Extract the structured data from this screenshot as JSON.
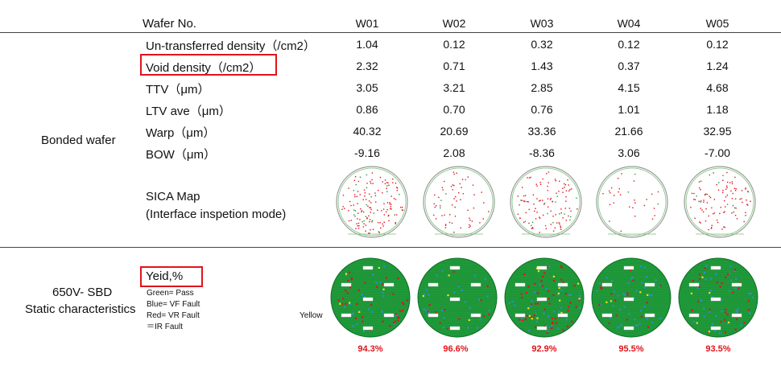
{
  "header": {
    "row_label": "Wafer No.",
    "wafers": [
      "W01",
      "W02",
      "W03",
      "W04",
      "W05"
    ]
  },
  "bonded": {
    "group_label": "Bonded wafer",
    "rows": [
      {
        "label": "Un-transferred density（/cm2）",
        "values": [
          "1.04",
          "0.12",
          "0.32",
          "0.12",
          "0.12"
        ]
      },
      {
        "label": "Void density（/cm2）",
        "values": [
          "2.32",
          "0.71",
          "1.43",
          "0.37",
          "1.24"
        ]
      },
      {
        "label": "TTV（μm）",
        "values": [
          "3.05",
          "3.21",
          "2.85",
          "4.15",
          "4.68"
        ]
      },
      {
        "label": "LTV ave（μm）",
        "values": [
          "0.86",
          "0.70",
          "0.76",
          "1.01",
          "1.18"
        ]
      },
      {
        "label": "Warp（μm）",
        "values": [
          "40.32",
          "20.69",
          "33.36",
          "21.66",
          "32.95"
        ]
      },
      {
        "label": "BOW（μm）",
        "values": [
          "-9.16",
          "2.08",
          "-8.36",
          "3.06",
          "-7.00"
        ]
      }
    ],
    "sica_label_1": "SICA Map",
    "sica_label_2": "(Interface inspetion mode)"
  },
  "sbd": {
    "group_label_1": "650V- SBD",
    "group_label_2": "Static characteristics",
    "yield_label": "Yeid,%",
    "legend": [
      "Green=   Pass",
      "Blue=   VF Fault",
      "Red=   VR Fault",
      "＝IR Fault"
    ],
    "yellow_label": "Yellow",
    "yields": [
      "94.3%",
      "96.6%",
      "92.9%",
      "95.5%",
      "93.5%"
    ]
  },
  "colors": {
    "highlight": "#e0141a",
    "pass": "#1f9a3a",
    "vf_fault": "#2a8fd6",
    "vr_fault": "#e0141a",
    "ir_fault": "#f3e21a"
  }
}
